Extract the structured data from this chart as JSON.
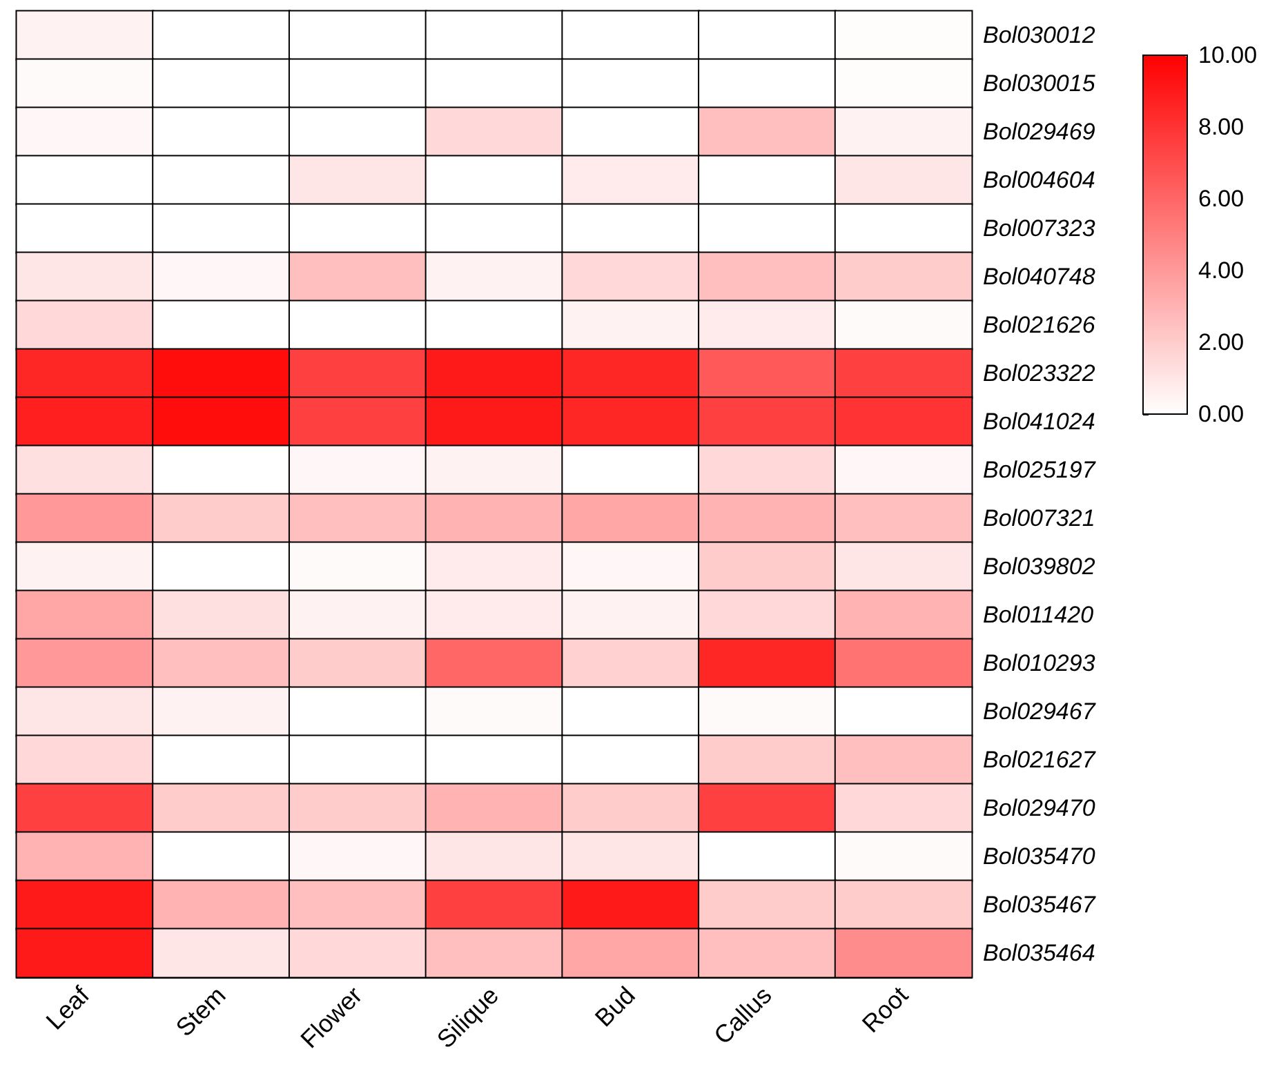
{
  "chart_data": {
    "type": "heatmap",
    "categories": [
      "Leaf",
      "Stem",
      "Flower",
      "Silique",
      "Bud",
      "Callus",
      "Root"
    ],
    "y_categories": [
      "Bol030012",
      "Bol030015",
      "Bol029469",
      "Bol004604",
      "Bol007323",
      "Bol040748",
      "Bol021626",
      "Bol023322",
      "Bol041024",
      "Bol025197",
      "Bol007321",
      "Bol039802",
      "Bol011420",
      "Bol010293",
      "Bol029467",
      "Bol021627",
      "Bol029470",
      "Bol035470",
      "Bol035467",
      "Bol035464"
    ],
    "cells": [
      [
        0.5,
        0,
        0,
        0,
        0,
        0,
        0.1
      ],
      [
        0.2,
        0,
        0,
        0,
        0,
        0,
        0.1
      ],
      [
        0.3,
        0,
        0,
        1.5,
        0,
        2.5,
        0.5
      ],
      [
        0,
        0,
        1,
        0,
        0.8,
        0,
        1
      ],
      [
        0,
        0,
        0,
        0,
        0,
        0,
        0
      ],
      [
        1,
        0.3,
        2.5,
        0.5,
        1.5,
        2.5,
        2
      ],
      [
        1.5,
        0,
        0,
        0,
        0.5,
        0.8,
        0.2
      ],
      [
        8.5,
        9.5,
        7.5,
        9,
        8.5,
        6.5,
        7.5
      ],
      [
        8.8,
        9.5,
        7.5,
        9,
        8.5,
        7.5,
        8
      ],
      [
        1.2,
        0,
        0.3,
        0.5,
        0,
        1.5,
        0.3
      ],
      [
        4,
        2,
        2.5,
        3,
        3.5,
        3,
        2.5
      ],
      [
        0.5,
        0,
        0.2,
        0.8,
        0.3,
        2,
        1
      ],
      [
        3.5,
        1.2,
        0.5,
        0.8,
        0.5,
        1.5,
        3
      ],
      [
        4,
        2.5,
        2,
        6,
        1.8,
        8.5,
        5.5
      ],
      [
        1,
        0.5,
        0,
        0.2,
        0,
        0.2,
        0
      ],
      [
        1.5,
        0,
        0,
        0,
        0,
        2,
        2.5
      ],
      [
        7.5,
        2,
        2,
        3,
        2,
        7.5,
        1.5
      ],
      [
        3,
        0,
        0.3,
        1,
        1,
        0,
        0.2
      ],
      [
        9,
        3,
        2.5,
        7.5,
        9,
        2,
        2
      ],
      [
        9,
        1,
        1.5,
        2.5,
        3.5,
        2.5,
        4.5
      ]
    ],
    "clim": [
      0,
      10
    ],
    "cticks": [
      {
        "value": 0,
        "label": "0.00"
      },
      {
        "value": 2,
        "label": "2.00"
      },
      {
        "value": 4,
        "label": "4.00"
      },
      {
        "value": 6,
        "label": "6.00"
      },
      {
        "value": 8,
        "label": "8.00"
      },
      {
        "value": 10,
        "label": "10.00"
      }
    ]
  }
}
